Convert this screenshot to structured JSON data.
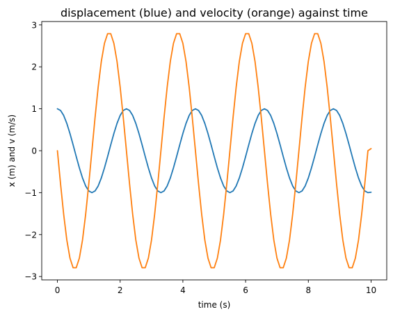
{
  "chart_data": {
    "type": "line",
    "title": "displacement (blue) and velocity (orange) against time",
    "xlabel": "time (s)",
    "ylabel": "x (m) and v (m/s)",
    "xlim": [
      -0.5,
      10.5
    ],
    "ylim": [
      -3.08,
      3.08
    ],
    "xticks": [
      0,
      2,
      4,
      6,
      8,
      10
    ],
    "xtick_labels": [
      "0",
      "2",
      "4",
      "6",
      "8",
      "10"
    ],
    "yticks": [
      -3,
      -2,
      -1,
      0,
      1,
      2,
      3
    ],
    "ytick_labels": [
      "−3",
      "−2",
      "−1",
      "0",
      "1",
      "2",
      "3"
    ],
    "grid": false,
    "x": [
      0.0,
      0.1,
      0.2,
      0.3,
      0.4,
      0.5,
      0.6,
      0.7,
      0.8,
      0.9,
      1.0,
      1.1,
      1.2,
      1.3,
      1.4,
      1.5,
      1.6,
      1.7,
      1.8,
      1.9,
      2.0,
      2.1,
      2.2,
      2.3,
      2.4,
      2.5,
      2.6,
      2.7,
      2.8,
      2.9,
      3.0,
      3.1,
      3.2,
      3.3,
      3.4,
      3.5,
      3.6,
      3.7,
      3.8,
      3.9,
      4.0,
      4.1,
      4.2,
      4.3,
      4.4,
      4.5,
      4.6,
      4.7,
      4.8,
      4.9,
      5.0,
      5.1,
      5.2,
      5.3,
      5.4,
      5.5,
      5.6,
      5.7,
      5.8,
      5.9,
      6.0,
      6.1,
      6.2,
      6.3,
      6.4,
      6.5,
      6.6,
      6.7,
      6.8,
      6.9,
      7.0,
      7.1,
      7.2,
      7.3,
      7.4,
      7.5,
      7.6,
      7.7,
      7.8,
      7.9,
      8.0,
      8.1,
      8.2,
      8.3,
      8.4,
      8.5,
      8.6,
      8.7,
      8.8,
      8.9,
      9.0,
      9.1,
      9.2,
      9.3,
      9.4,
      9.5,
      9.6,
      9.7,
      9.8,
      9.9,
      10.0
    ],
    "series": [
      {
        "color": "#1f77b4",
        "values": [
          1.0,
          0.96,
          0.84,
          0.65,
          0.41,
          0.14,
          -0.14,
          -0.41,
          -0.65,
          -0.84,
          -0.96,
          -1.0,
          -0.96,
          -0.84,
          -0.65,
          -0.41,
          -0.14,
          0.14,
          0.41,
          0.65,
          0.84,
          0.96,
          1.0,
          0.96,
          0.84,
          0.65,
          0.41,
          0.14,
          -0.14,
          -0.41,
          -0.65,
          -0.84,
          -0.96,
          -1.0,
          -0.96,
          -0.84,
          -0.65,
          -0.41,
          -0.14,
          0.14,
          0.41,
          0.65,
          0.84,
          0.96,
          1.0,
          0.96,
          0.84,
          0.65,
          0.41,
          0.14,
          -0.14,
          -0.41,
          -0.65,
          -0.84,
          -0.96,
          -1.0,
          -0.96,
          -0.84,
          -0.65,
          -0.41,
          -0.14,
          0.14,
          0.41,
          0.65,
          0.84,
          0.96,
          1.0,
          0.96,
          0.84,
          0.65,
          0.41,
          0.14,
          -0.14,
          -0.41,
          -0.65,
          -0.84,
          -0.96,
          -1.0,
          -0.96,
          -0.84,
          -0.65,
          -0.41,
          -0.14,
          0.14,
          0.41,
          0.65,
          0.84,
          0.96,
          1.0,
          0.96,
          0.84,
          0.65,
          0.41,
          0.14,
          -0.14,
          -0.41,
          -0.65,
          -0.84,
          -0.96,
          -1.0,
          -0.99
        ]
      },
      {
        "color": "#ff7f0e",
        "values": [
          0.0,
          -0.79,
          -1.52,
          -2.13,
          -2.56,
          -2.79,
          -2.79,
          -2.56,
          -2.13,
          -1.52,
          -0.79,
          0.0,
          0.79,
          1.52,
          2.13,
          2.56,
          2.79,
          2.79,
          2.56,
          2.13,
          1.52,
          0.79,
          0.0,
          -0.79,
          -1.52,
          -2.13,
          -2.56,
          -2.79,
          -2.79,
          -2.56,
          -2.13,
          -1.52,
          -0.79,
          0.0,
          0.79,
          1.52,
          2.13,
          2.56,
          2.79,
          2.79,
          2.56,
          2.13,
          1.52,
          0.79,
          0.0,
          -0.79,
          -1.52,
          -2.13,
          -2.56,
          -2.79,
          -2.79,
          -2.56,
          -2.13,
          -1.52,
          -0.79,
          0.0,
          0.79,
          1.52,
          2.13,
          2.56,
          2.79,
          2.79,
          2.56,
          2.13,
          1.52,
          0.79,
          0.0,
          -0.79,
          -1.52,
          -2.13,
          -2.56,
          -2.79,
          -2.79,
          -2.56,
          -2.13,
          -1.52,
          -0.79,
          0.0,
          0.79,
          1.52,
          2.13,
          2.56,
          2.79,
          2.79,
          2.56,
          2.13,
          1.52,
          0.79,
          0.0,
          -0.79,
          -1.52,
          -2.13,
          -2.56,
          -2.79,
          -2.79,
          -2.56,
          -2.13,
          -1.52,
          -0.79,
          0.0,
          0.05
        ]
      }
    ]
  }
}
